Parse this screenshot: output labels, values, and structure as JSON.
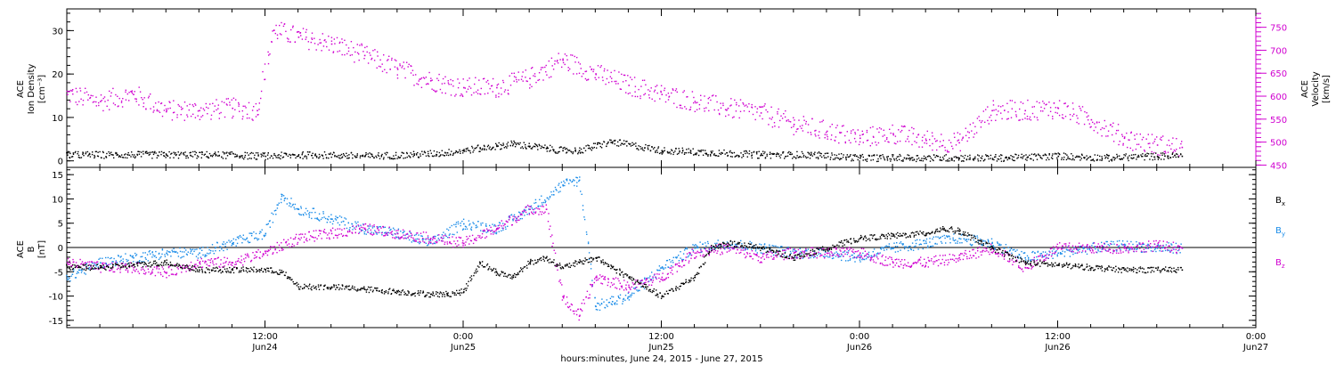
{
  "chart_data": [
    {
      "type": "scatter",
      "panel": "top",
      "xlim": [
        0,
        72
      ],
      "x_unit": "hours after 2015-06-23 21:00 UT",
      "ylim_left": [
        -1.5,
        35
      ],
      "ylim_right": [
        445,
        790
      ],
      "yticks_left": [
        0,
        10,
        20,
        30
      ],
      "yticks_right": [
        450,
        500,
        550,
        600,
        650,
        700,
        750
      ],
      "ylabel_left": [
        "ACE",
        "Ion Density",
        "[cm⁻³]"
      ],
      "ylabel_right": [
        "ACE",
        "Velocity",
        "[km/s]"
      ],
      "series": [
        {
          "axis": "left",
          "color": "#000000",
          "x": [
            0,
            3,
            6,
            9,
            12,
            15,
            18,
            21,
            23,
            24,
            25,
            26,
            27,
            28,
            29,
            30,
            31,
            33,
            36,
            39,
            42,
            45,
            48,
            51,
            54,
            57,
            60,
            63,
            66,
            67.5
          ],
          "y": [
            1.5,
            1.5,
            1.5,
            1.5,
            1.2,
            1.5,
            1.2,
            1.5,
            2.0,
            2.5,
            3.0,
            3.5,
            4.0,
            3.5,
            3.0,
            2.5,
            2.5,
            4.5,
            2.5,
            2.0,
            1.5,
            1.5,
            0.8,
            0.8,
            0.8,
            0.8,
            1.2,
            0.8,
            1.2,
            1.2
          ]
        },
        {
          "axis": "right",
          "color": "#d000d0",
          "x": [
            0,
            2,
            4,
            6,
            8,
            10,
            11.5,
            12.5,
            14,
            16,
            18,
            20,
            22,
            24,
            26,
            28,
            30,
            32,
            34,
            36,
            38,
            40,
            42,
            44,
            46,
            48,
            50,
            52,
            54,
            56,
            58,
            60,
            62,
            64,
            66,
            67.5
          ],
          "y": [
            605,
            590,
            605,
            570,
            570,
            575,
            570,
            745,
            730,
            715,
            690,
            660,
            635,
            620,
            620,
            640,
            680,
            650,
            625,
            605,
            590,
            575,
            565,
            540,
            525,
            510,
            520,
            505,
            500,
            570,
            570,
            575,
            550,
            510,
            495,
            490
          ]
        }
      ]
    },
    {
      "type": "scatter",
      "panel": "bottom",
      "xlim": [
        0,
        72
      ],
      "x_unit": "hours after 2015-06-23 21:00 UT",
      "ylim": [
        -16.5,
        16.5
      ],
      "yticks": [
        -15,
        -10,
        -5,
        0,
        5,
        10,
        15
      ],
      "ylabel": [
        "ACE",
        "B",
        "[nT]"
      ],
      "zero_line": true,
      "series": [
        {
          "name": "Bx",
          "color": "#000000",
          "x": [
            0,
            2,
            4,
            6,
            8,
            10,
            12,
            13,
            14,
            16,
            18,
            20,
            22,
            23,
            24,
            25,
            26,
            27,
            28,
            29,
            30,
            31,
            32,
            33,
            34,
            35,
            36,
            38,
            39,
            40,
            42,
            44,
            46,
            48,
            50,
            52,
            53,
            54,
            56,
            58,
            60,
            62,
            64,
            66,
            67.5
          ],
          "y": [
            -4,
            -4,
            -3.5,
            -3,
            -4.5,
            -4.5,
            -4.5,
            -5,
            -8,
            -8,
            -8.5,
            -9,
            -9.5,
            -9.5,
            -9,
            -3,
            -5,
            -6,
            -3,
            -2,
            -4,
            -3,
            -2,
            -4,
            -6,
            -8,
            -10,
            -6,
            0,
            1,
            0,
            -2,
            0,
            2,
            2.5,
            3,
            4,
            3.5,
            0,
            -3,
            -3.5,
            -4,
            -4.5,
            -4.5,
            -4.5
          ]
        },
        {
          "name": "By",
          "color": "#1a8ce8",
          "x": [
            0,
            2,
            4,
            6,
            8,
            10,
            12,
            13,
            14,
            16,
            18,
            20,
            22,
            24,
            26,
            28,
            30,
            31,
            32,
            33,
            34,
            36,
            38,
            40,
            42,
            44,
            46,
            48,
            50,
            52,
            54,
            56,
            58,
            60,
            62,
            64,
            66,
            67.5
          ],
          "y": [
            -6,
            -3,
            -2,
            -1,
            -1,
            1,
            3,
            11,
            8,
            6,
            4,
            3,
            1,
            5,
            4,
            8,
            13,
            14,
            -12,
            -11,
            -10,
            -4,
            0,
            1,
            0,
            -1,
            -1,
            -2,
            0,
            1,
            2,
            1,
            -2,
            -1,
            0,
            0.5,
            0,
            0
          ]
        },
        {
          "name": "Bz",
          "color": "#d000d0",
          "x": [
            0,
            2,
            4,
            6,
            8,
            10,
            12,
            14,
            16,
            18,
            20,
            22,
            24,
            26,
            28,
            29,
            30,
            31,
            32,
            34,
            36,
            38,
            40,
            42,
            44,
            46,
            48,
            50,
            52,
            54,
            56,
            58,
            60,
            62,
            64,
            66,
            67.5
          ],
          "y": [
            -3,
            -4,
            -4,
            -5,
            -3,
            -3,
            -1,
            2,
            3,
            4,
            3,
            2,
            1,
            4,
            8,
            8,
            -10,
            -14,
            -6,
            -8,
            -6,
            -1,
            0,
            -2,
            -1,
            -1,
            -1,
            -3,
            -3,
            -2,
            0,
            -4,
            0,
            0,
            0,
            0.5,
            0
          ]
        }
      ]
    }
  ],
  "legend": {
    "bx": {
      "main": "B",
      "sub": "x"
    },
    "by": {
      "main": "B",
      "sub": "y"
    },
    "bz": {
      "main": "B",
      "sub": "z"
    }
  },
  "x_axis": {
    "ticks": [
      {
        "hour": 15,
        "time": "12:00",
        "date": "Jun24"
      },
      {
        "hour": 27,
        "time": "0:00",
        "date": "Jun25"
      },
      {
        "hour": 39,
        "time": "12:00",
        "date": "Jun25"
      },
      {
        "hour": 51,
        "time": "0:00",
        "date": "Jun26"
      },
      {
        "hour": 63,
        "time": "12:00",
        "date": "Jun26"
      },
      {
        "hour": 75,
        "time": "0:00",
        "date": "Jun27"
      }
    ],
    "title": "hours:minutes, June 24, 2015 - June 27, 2015"
  }
}
